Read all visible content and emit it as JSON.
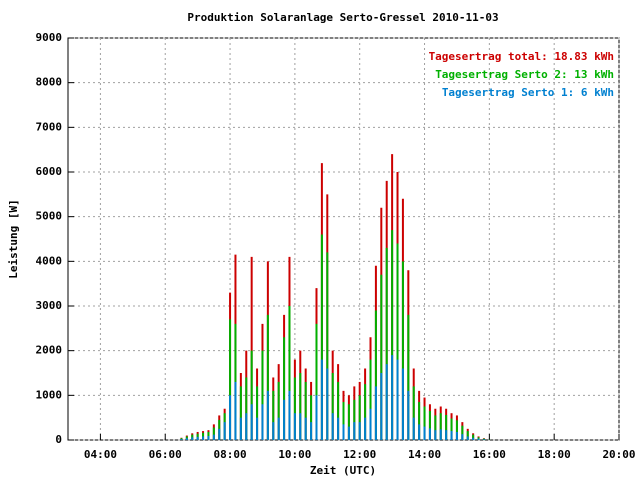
{
  "chart_data": {
    "type": "impulse",
    "title": "Produktion Solaranlage Serto-Gressel 2010-11-03",
    "x_label": "Zeit (UTC)",
    "y_label": "Leistung [W]",
    "xlim": [
      "03:00",
      "20:00"
    ],
    "xticks": [
      "04:00",
      "06:00",
      "08:00",
      "10:00",
      "12:00",
      "14:00",
      "16:00",
      "18:00",
      "20:00"
    ],
    "ylim": [
      0,
      9000
    ],
    "yticks": [
      0,
      1000,
      2000,
      3000,
      4000,
      5000,
      6000,
      7000,
      8000,
      9000
    ],
    "grid": true,
    "legend": "top-right",
    "x": [
      "06:30",
      "06:40",
      "06:50",
      "07:00",
      "07:10",
      "07:20",
      "07:30",
      "07:40",
      "07:50",
      "08:00",
      "08:10",
      "08:20",
      "08:30",
      "08:40",
      "08:50",
      "09:00",
      "09:10",
      "09:20",
      "09:30",
      "09:40",
      "09:50",
      "10:00",
      "10:10",
      "10:20",
      "10:30",
      "10:40",
      "10:50",
      "11:00",
      "11:10",
      "11:20",
      "11:30",
      "11:40",
      "11:50",
      "12:00",
      "12:10",
      "12:20",
      "12:30",
      "12:40",
      "12:50",
      "13:00",
      "13:10",
      "13:20",
      "13:30",
      "13:40",
      "13:50",
      "14:00",
      "14:10",
      "14:20",
      "14:30",
      "14:40",
      "14:50",
      "15:00",
      "15:10",
      "15:20",
      "15:30",
      "15:40",
      "15:50",
      "16:00"
    ],
    "series": [
      {
        "name": "Tagesertrag total: 18.83 kWh",
        "color": "#cc0000",
        "values": [
          50,
          100,
          150,
          180,
          200,
          220,
          350,
          550,
          700,
          3300,
          4150,
          1500,
          2000,
          4100,
          1600,
          2600,
          4000,
          1400,
          1700,
          2800,
          4100,
          1800,
          2000,
          1600,
          1300,
          3400,
          6200,
          5500,
          2000,
          1700,
          1100,
          1000,
          1200,
          1300,
          1600,
          2300,
          3900,
          5200,
          5800,
          6400,
          6000,
          5400,
          3800,
          1600,
          1100,
          950,
          800,
          700,
          750,
          700,
          600,
          550,
          400,
          250,
          150,
          80,
          40,
          10
        ]
      },
      {
        "name": "Tagesertrag Serto 2: 13 kWh",
        "color": "#00b000",
        "values": [
          40,
          80,
          120,
          140,
          160,
          180,
          280,
          450,
          600,
          2700,
          2600,
          1200,
          1400,
          2000,
          1200,
          2000,
          2800,
          1100,
          1300,
          2300,
          3000,
          1400,
          1500,
          1300,
          1000,
          2600,
          4600,
          4200,
          1500,
          1300,
          850,
          800,
          900,
          1000,
          1250,
          1800,
          2900,
          3700,
          4300,
          4700,
          4400,
          4000,
          2800,
          1200,
          850,
          750,
          650,
          550,
          600,
          560,
          480,
          440,
          320,
          200,
          120,
          60,
          30,
          8
        ]
      },
      {
        "name": "Tagesertrag Serto 1: 6 kWh",
        "color": "#0080d0",
        "values": [
          20,
          40,
          60,
          70,
          80,
          90,
          120,
          250,
          400,
          1000,
          1300,
          500,
          600,
          800,
          500,
          800,
          1100,
          400,
          500,
          900,
          1100,
          600,
          600,
          500,
          400,
          1000,
          1800,
          1600,
          600,
          500,
          350,
          300,
          400,
          400,
          500,
          700,
          1200,
          1500,
          1700,
          1900,
          1800,
          1600,
          1100,
          500,
          350,
          300,
          260,
          220,
          240,
          220,
          200,
          180,
          130,
          80,
          50,
          30,
          15,
          4
        ]
      }
    ]
  }
}
